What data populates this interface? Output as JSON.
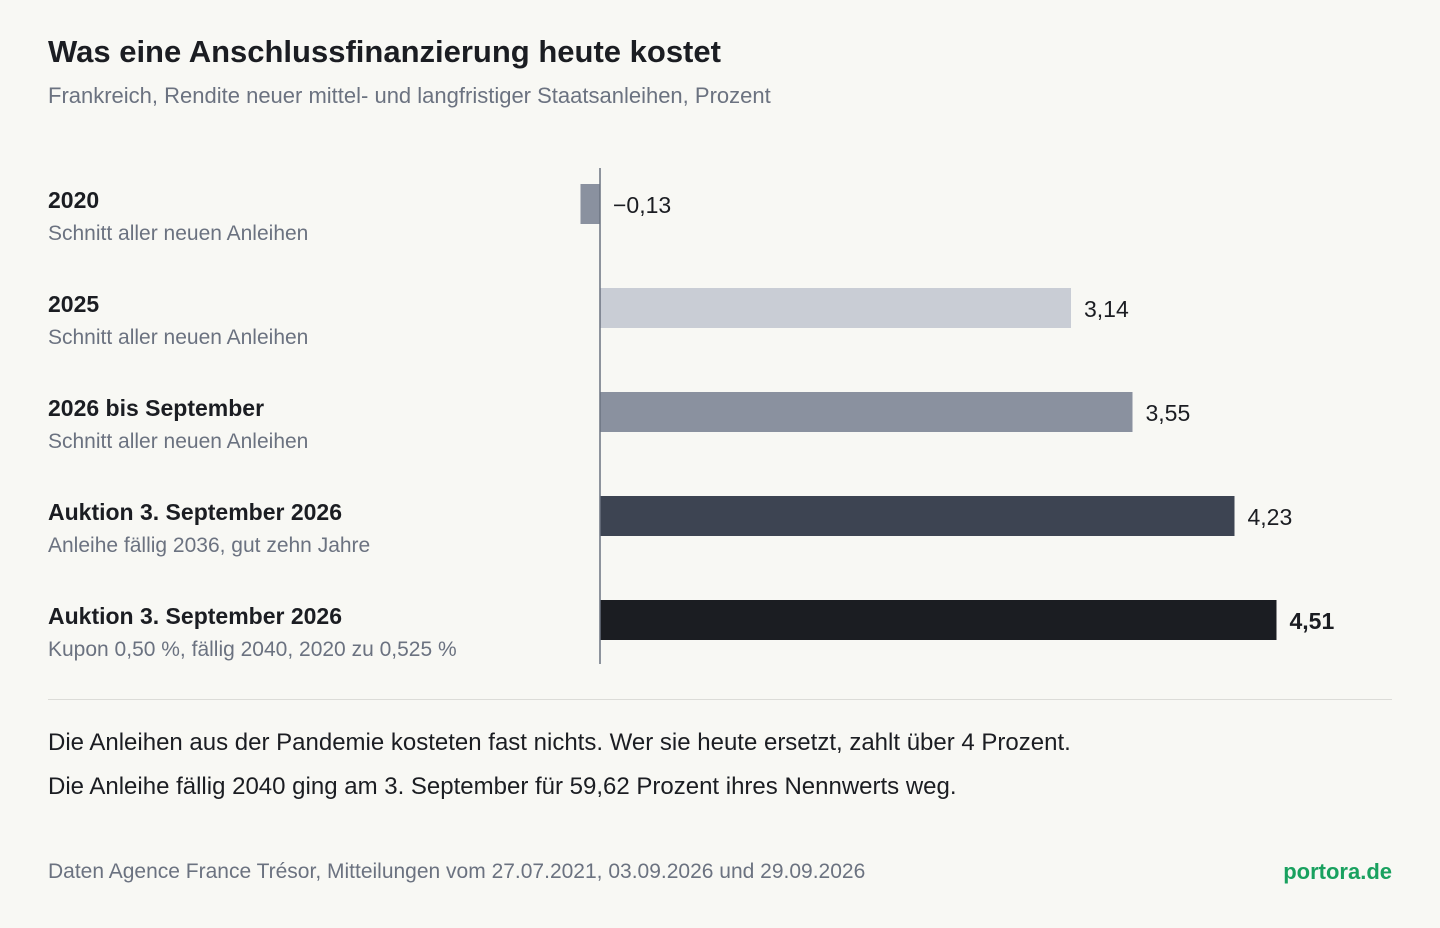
{
  "header": {
    "title": "Was eine Anschlussfinanzierung heute kostet",
    "subtitle": "Frankreich, Rendite neuer mittel- und langfristiger Staatsanleihen, Prozent"
  },
  "chart_data": {
    "type": "bar",
    "orientation": "horizontal",
    "categories": [
      {
        "label": "2020",
        "sublabel": "Schnitt aller neuen Anleihen"
      },
      {
        "label": "2025",
        "sublabel": "Schnitt aller neuen Anleihen"
      },
      {
        "label": "2026 bis September",
        "sublabel": "Schnitt aller neuen Anleihen"
      },
      {
        "label": "Auktion 3. September 2026",
        "sublabel": "Anleihe fällig 2036, gut zehn Jahre"
      },
      {
        "label": "Auktion 3. September 2026",
        "sublabel": "Kupon 0,50 %, fällig 2040, 2020 zu 0,525 %"
      }
    ],
    "values": [
      -0.13,
      3.14,
      3.55,
      4.23,
      4.51
    ],
    "value_labels": [
      "−0,13",
      "3,14",
      "3,55",
      "4,23",
      "4,51"
    ],
    "colors": [
      "#8a919f",
      "#c9cdd5",
      "#8a919f",
      "#3d4452",
      "#1b1d22"
    ],
    "highlight_index": 4,
    "xlim": [
      -0.13,
      4.51
    ],
    "grid": false,
    "legend": "none",
    "axis_color": "#6b7280"
  },
  "notes": {
    "line1": "Die Anleihen aus der Pandemie kosteten fast nichts. Wer sie heute ersetzt, zahlt über 4 Prozent.",
    "line2": "Die Anleihe fällig 2040 ging am 3. September für 59,62 Prozent ihres Nennwerts weg."
  },
  "footer": {
    "source": "Daten Agence France Trésor, Mitteilungen vom 27.07.2021, 03.09.2026 und 29.09.2026",
    "brand": "portora.de",
    "brand_color": "#19a15f"
  }
}
